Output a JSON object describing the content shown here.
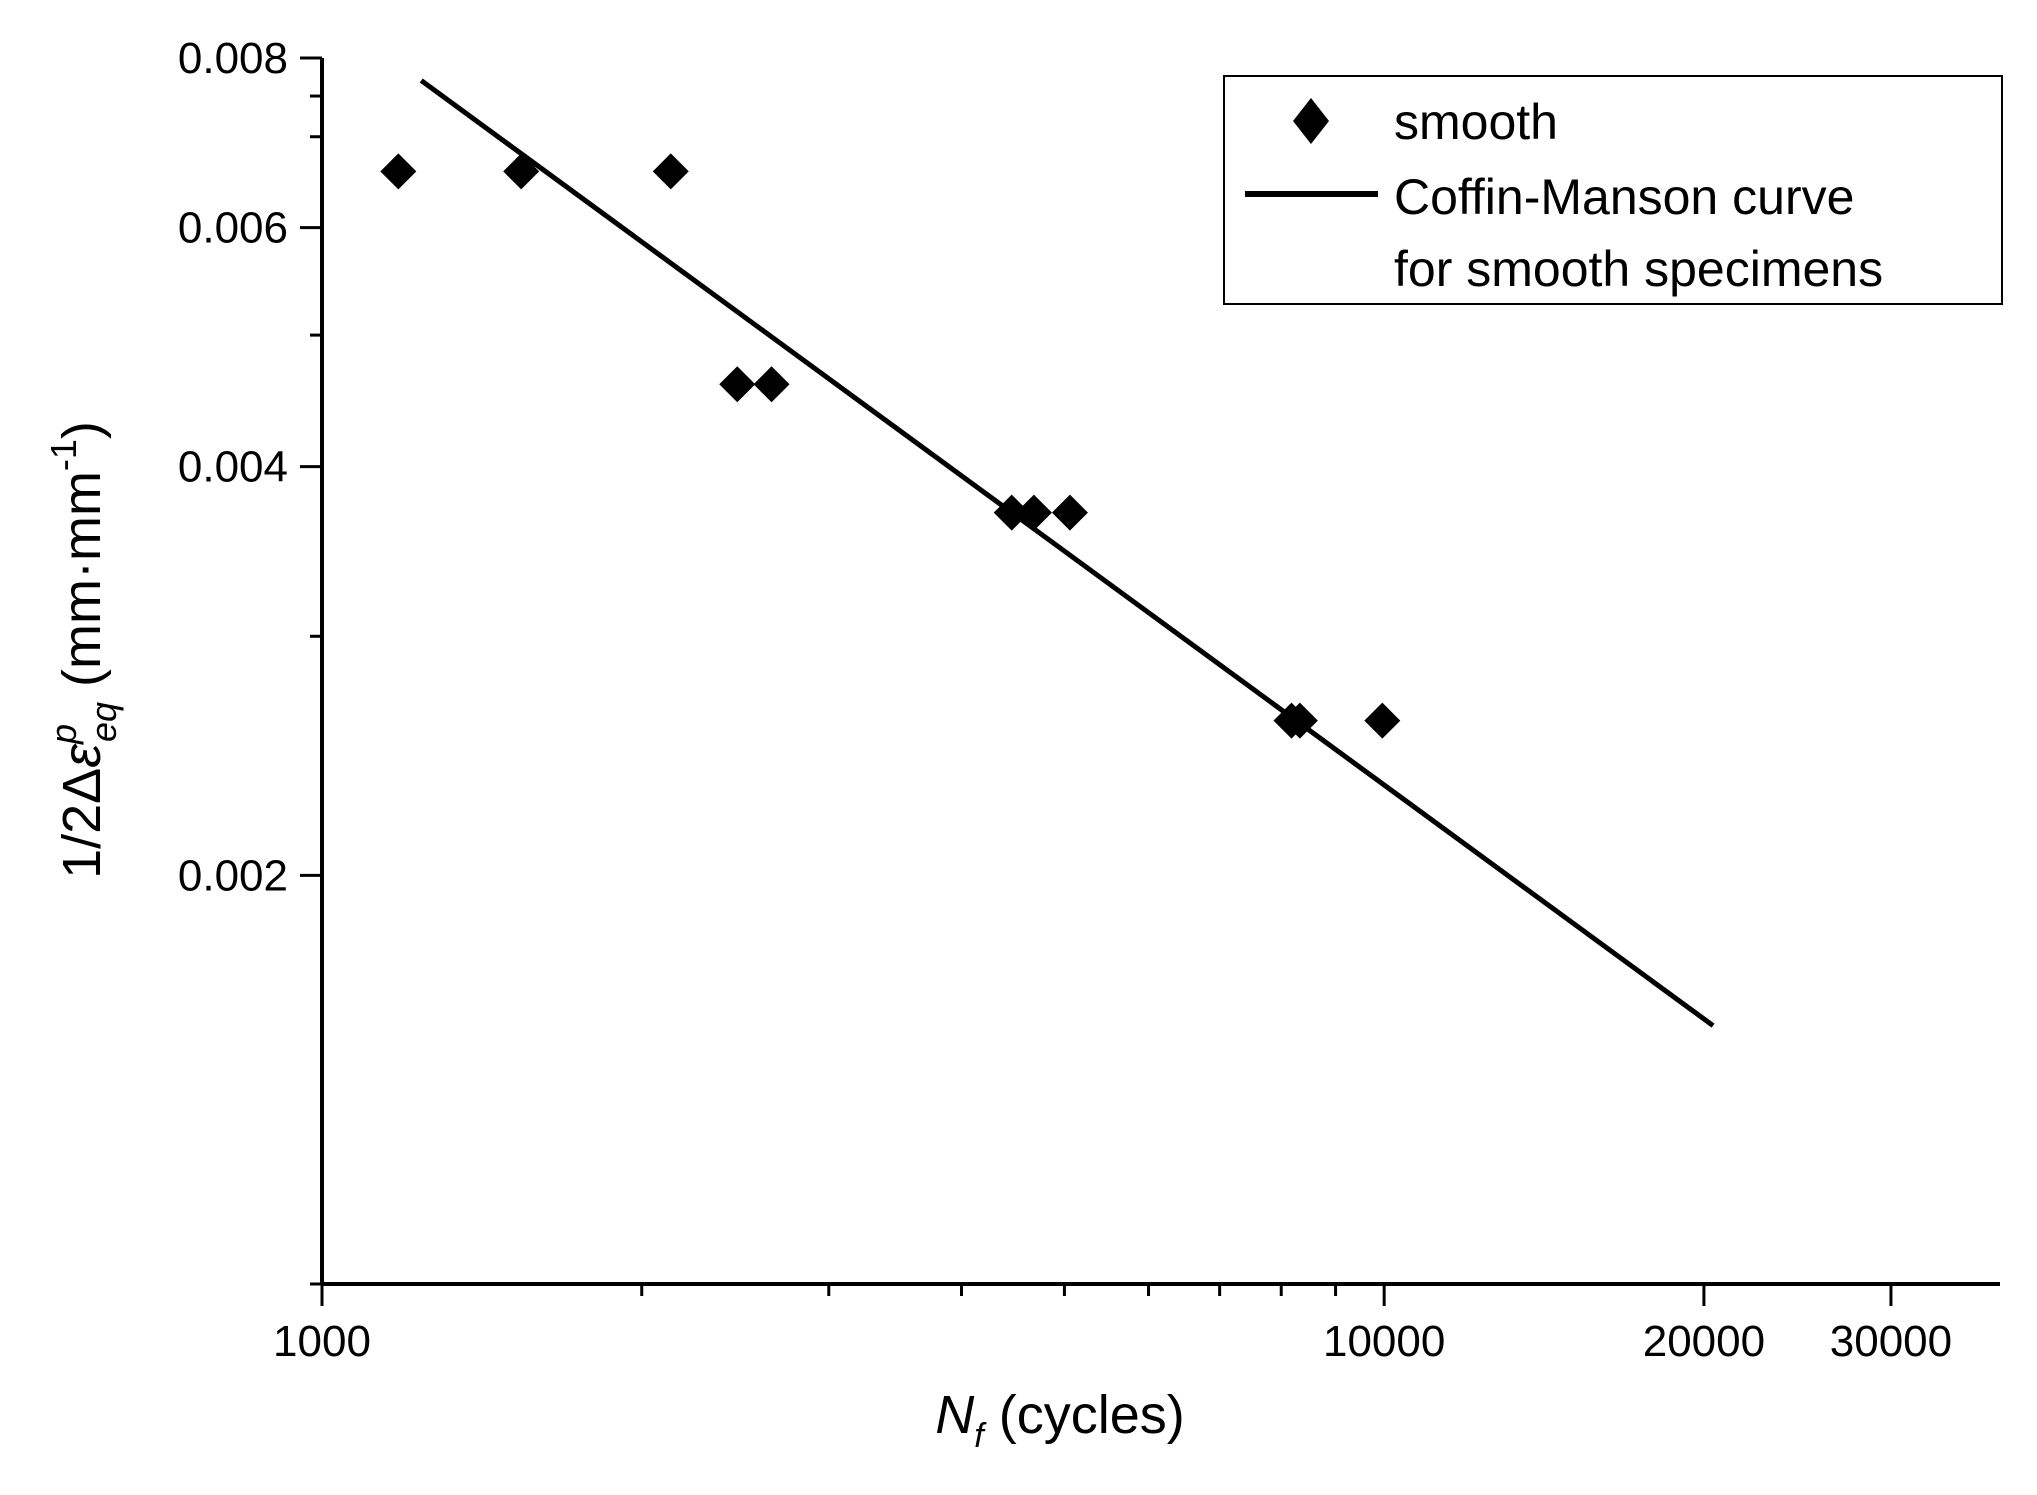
{
  "chart_data": {
    "type": "scatter",
    "x_scale": "log",
    "y_scale": "log",
    "xlim": [
      1000,
      38000
    ],
    "ylim": [
      0.001,
      0.008
    ],
    "x_major_ticks": [
      1000,
      10000,
      20000,
      30000
    ],
    "x_tick_labels": [
      "1000",
      "10000",
      "20000",
      "30000"
    ],
    "y_major_ticks": [
      0.002,
      0.004,
      0.006,
      0.008
    ],
    "y_tick_labels": [
      "0.002",
      "0.004",
      "0.006",
      "0.008"
    ],
    "xlabel": {
      "main": "N",
      "sub": "f",
      "rest": " (cycles)"
    },
    "ylabel": {
      "prefix": "1/2Δ",
      "symbol": "ε",
      "sup": "p",
      "sub": "eq",
      "units": " (mm·mm",
      "units_sup": "-1",
      "units_close": ")"
    },
    "series": [
      {
        "name": "smooth",
        "marker": "diamond",
        "points": [
          [
            1180,
            0.0066
          ],
          [
            1540,
            0.0066
          ],
          [
            2130,
            0.0066
          ],
          [
            2460,
            0.0046
          ],
          [
            2650,
            0.0046
          ],
          [
            4460,
            0.0037
          ],
          [
            4680,
            0.0037
          ],
          [
            5060,
            0.0037
          ],
          [
            8180,
            0.0026
          ],
          [
            8330,
            0.0026
          ],
          [
            9960,
            0.0026
          ]
        ]
      },
      {
        "name": "Coffin-Manson curve for smooth specimens",
        "legend_lines": [
          "Coffin-Manson curve",
          "for smooth specimens"
        ],
        "marker": "line",
        "points": [
          [
            1240,
            0.0077
          ],
          [
            20400,
            0.00155
          ]
        ]
      }
    ],
    "legend_position": "top-right",
    "grid": false
  }
}
